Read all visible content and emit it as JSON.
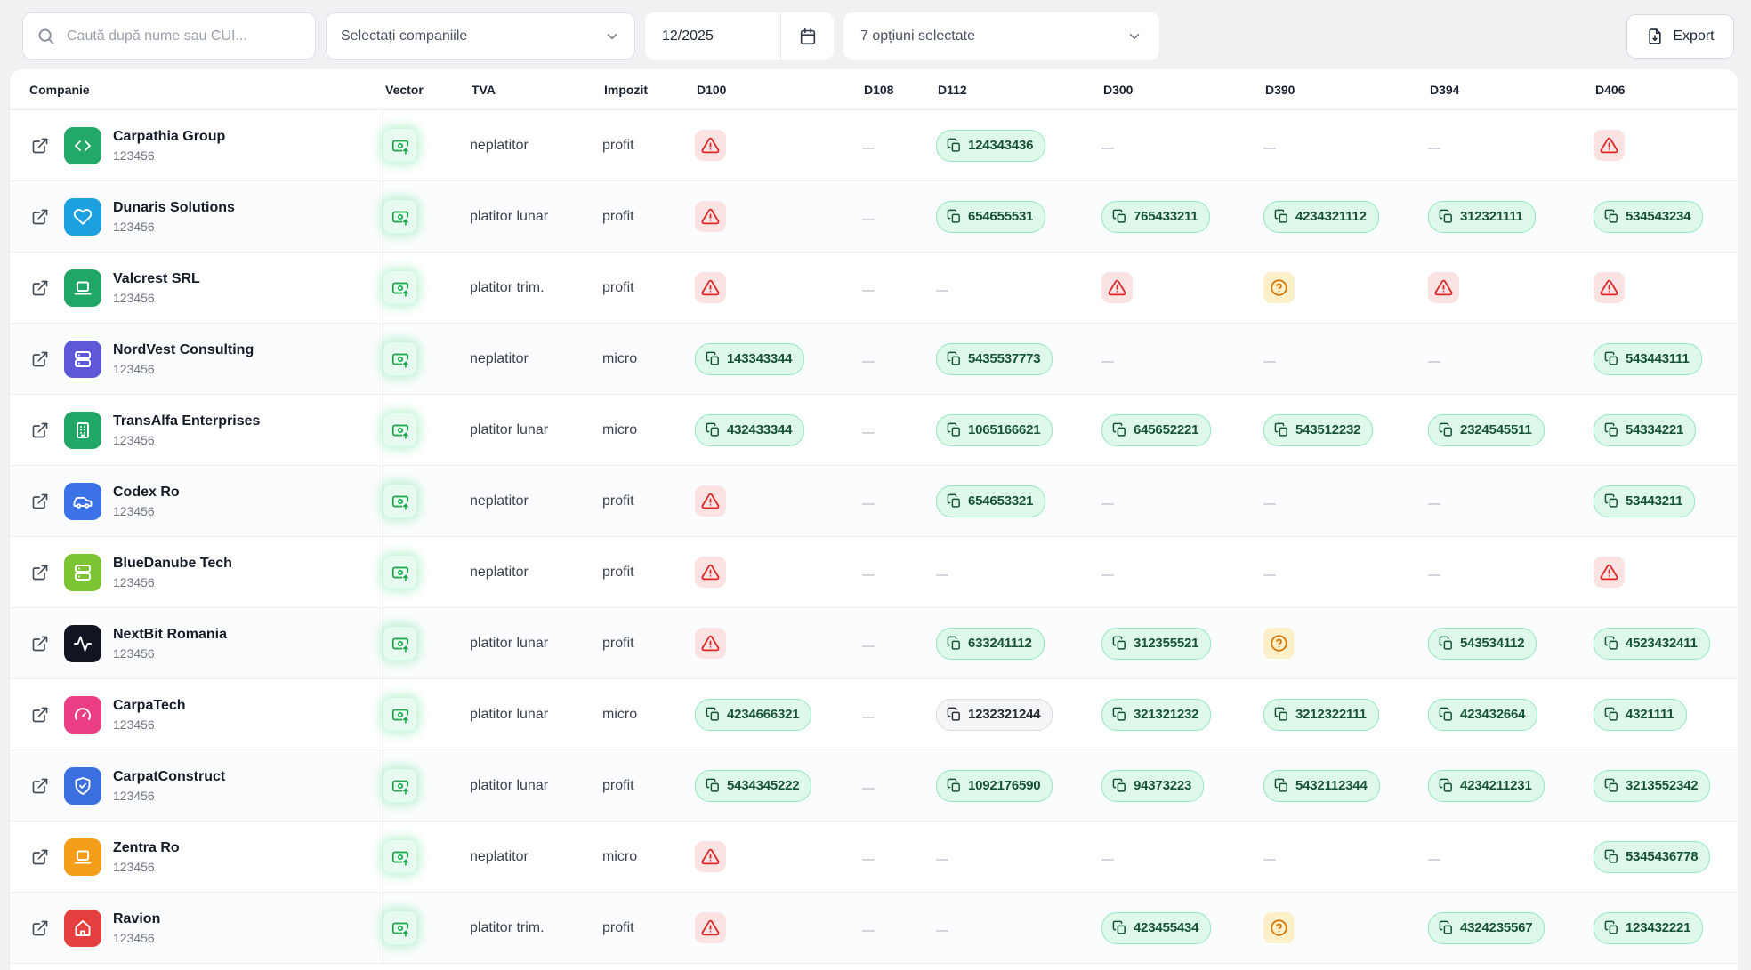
{
  "toolbar": {
    "search": {
      "placeholder": "Caută după nume sau CUI..."
    },
    "company_select": {
      "value": "Selectați companiile"
    },
    "period": {
      "value": "12/2025"
    },
    "options_select": {
      "value": "7 opțiuni selectate"
    },
    "export": {
      "label": "Export"
    }
  },
  "colors": {
    "badge_green_bg": "#DEF9EA",
    "badge_green_border": "#93E7C0",
    "badge_green_text": "#175235",
    "badge_neutral_bg": "#F4F5F7",
    "badge_neutral_border": "#D8DCE1",
    "badge_neutral_text": "#232A31",
    "alert_bg": "#FBE3E4",
    "alert_icon": "#DC2626",
    "question_bg": "#FBF0C9",
    "question_icon": "#D97706",
    "vector_icon": "#16A34A"
  },
  "table": {
    "columns": [
      {
        "key": "companie",
        "label": "Companie"
      },
      {
        "key": "vector",
        "label": "Vector"
      },
      {
        "key": "tva",
        "label": "TVA"
      },
      {
        "key": "impozit",
        "label": "Impozit"
      },
      {
        "key": "d100",
        "label": "D100"
      },
      {
        "key": "d108",
        "label": "D108"
      },
      {
        "key": "d112",
        "label": "D112"
      },
      {
        "key": "d300",
        "label": "D300"
      },
      {
        "key": "d390",
        "label": "D390"
      },
      {
        "key": "d394",
        "label": "D394"
      },
      {
        "key": "d406",
        "label": "D406"
      }
    ],
    "rows": [
      {
        "name": "Carpathia Group",
        "cui": "123456",
        "icon": "code-icon",
        "icon_bg": "#22A868",
        "tva": "neplatitor",
        "impozit": "profit",
        "declarations": [
          {
            "type": "alert"
          },
          {
            "type": "empty"
          },
          {
            "type": "value",
            "value": "124343436",
            "variant": "green"
          },
          {
            "type": "empty"
          },
          {
            "type": "empty"
          },
          {
            "type": "empty"
          },
          {
            "type": "alert"
          }
        ]
      },
      {
        "name": "Dunaris Solutions",
        "cui": "123456",
        "icon": "heart-icon",
        "icon_bg": "#1CA0E0",
        "tva": "platitor lunar",
        "impozit": "profit",
        "declarations": [
          {
            "type": "alert"
          },
          {
            "type": "empty"
          },
          {
            "type": "value",
            "value": "654655531",
            "variant": "green"
          },
          {
            "type": "value",
            "value": "765433211",
            "variant": "green"
          },
          {
            "type": "value",
            "value": "4234321112",
            "variant": "green"
          },
          {
            "type": "value",
            "value": "312321111",
            "variant": "green"
          },
          {
            "type": "value",
            "value": "534543234",
            "variant": "green"
          }
        ]
      },
      {
        "name": "Valcrest SRL",
        "cui": "123456",
        "icon": "laptop-icon",
        "icon_bg": "#21A765",
        "tva": "platitor trim.",
        "impozit": "profit",
        "declarations": [
          {
            "type": "alert"
          },
          {
            "type": "empty"
          },
          {
            "type": "empty"
          },
          {
            "type": "alert"
          },
          {
            "type": "question"
          },
          {
            "type": "alert"
          },
          {
            "type": "alert"
          }
        ]
      },
      {
        "name": "NordVest Consulting",
        "cui": "123456",
        "icon": "server-icon",
        "icon_bg": "#5E58D8",
        "tva": "neplatitor",
        "impozit": "micro",
        "declarations": [
          {
            "type": "value",
            "value": "143343344",
            "variant": "green"
          },
          {
            "type": "empty"
          },
          {
            "type": "value",
            "value": "5435537773",
            "variant": "green"
          },
          {
            "type": "empty"
          },
          {
            "type": "empty"
          },
          {
            "type": "empty"
          },
          {
            "type": "value",
            "value": "543443111",
            "variant": "green"
          }
        ]
      },
      {
        "name": "TransAlfa Enterprises",
        "cui": "123456",
        "icon": "building-icon",
        "icon_bg": "#21A765",
        "tva": "platitor lunar",
        "impozit": "micro",
        "declarations": [
          {
            "type": "value",
            "value": "432433344",
            "variant": "green"
          },
          {
            "type": "empty"
          },
          {
            "type": "value",
            "value": "1065166621",
            "variant": "green"
          },
          {
            "type": "value",
            "value": "645652221",
            "variant": "green"
          },
          {
            "type": "value",
            "value": "543512232",
            "variant": "green"
          },
          {
            "type": "value",
            "value": "2324545511",
            "variant": "green"
          },
          {
            "type": "value",
            "value": "54334221",
            "variant": "green"
          }
        ]
      },
      {
        "name": "Codex Ro",
        "cui": "123456",
        "icon": "car-icon",
        "icon_bg": "#3B72E8",
        "tva": "neplatitor",
        "impozit": "profit",
        "declarations": [
          {
            "type": "alert"
          },
          {
            "type": "empty"
          },
          {
            "type": "value",
            "value": "654653321",
            "variant": "green"
          },
          {
            "type": "empty"
          },
          {
            "type": "empty"
          },
          {
            "type": "empty"
          },
          {
            "type": "value",
            "value": "53443211",
            "variant": "green"
          }
        ]
      },
      {
        "name": "BlueDanube Tech",
        "cui": "123456",
        "icon": "server-icon",
        "icon_bg": "#7CC433",
        "tva": "neplatitor",
        "impozit": "profit",
        "declarations": [
          {
            "type": "alert"
          },
          {
            "type": "empty"
          },
          {
            "type": "empty"
          },
          {
            "type": "empty"
          },
          {
            "type": "empty"
          },
          {
            "type": "empty"
          },
          {
            "type": "alert"
          }
        ]
      },
      {
        "name": "NextBit Romania",
        "cui": "123456",
        "icon": "activity-icon",
        "icon_bg": "#111522",
        "tva": "platitor lunar",
        "impozit": "profit",
        "declarations": [
          {
            "type": "alert"
          },
          {
            "type": "empty"
          },
          {
            "type": "value",
            "value": "633241112",
            "variant": "green"
          },
          {
            "type": "value",
            "value": "312355521",
            "variant": "green"
          },
          {
            "type": "question"
          },
          {
            "type": "value",
            "value": "543534112",
            "variant": "green"
          },
          {
            "type": "value",
            "value": "4523432411",
            "variant": "green"
          }
        ]
      },
      {
        "name": "CarpaTech",
        "cui": "123456",
        "icon": "gauge-icon",
        "icon_bg": "#EC3E85",
        "tva": "platitor lunar",
        "impozit": "micro",
        "declarations": [
          {
            "type": "value",
            "value": "4234666321",
            "variant": "green"
          },
          {
            "type": "empty"
          },
          {
            "type": "value",
            "value": "1232321244",
            "variant": "neutral"
          },
          {
            "type": "value",
            "value": "321321232",
            "variant": "green"
          },
          {
            "type": "value",
            "value": "3212322111",
            "variant": "green"
          },
          {
            "type": "value",
            "value": "423432664",
            "variant": "green"
          },
          {
            "type": "value",
            "value": "4321111",
            "variant": "green"
          }
        ]
      },
      {
        "name": "CarpatConstruct",
        "cui": "123456",
        "icon": "shield-check-icon",
        "icon_bg": "#3B6FE0",
        "tva": "platitor lunar",
        "impozit": "profit",
        "declarations": [
          {
            "type": "value",
            "value": "5434345222",
            "variant": "green"
          },
          {
            "type": "empty"
          },
          {
            "type": "value",
            "value": "1092176590",
            "variant": "green"
          },
          {
            "type": "value",
            "value": "94373223",
            "variant": "green"
          },
          {
            "type": "value",
            "value": "5432112344",
            "variant": "green"
          },
          {
            "type": "value",
            "value": "4234211231",
            "variant": "green"
          },
          {
            "type": "value",
            "value": "3213552342",
            "variant": "green"
          }
        ]
      },
      {
        "name": "Zentra Ro",
        "cui": "123456",
        "icon": "laptop-icon",
        "icon_bg": "#F59E1B",
        "tva": "neplatitor",
        "impozit": "micro",
        "declarations": [
          {
            "type": "alert"
          },
          {
            "type": "empty"
          },
          {
            "type": "empty"
          },
          {
            "type": "empty"
          },
          {
            "type": "empty"
          },
          {
            "type": "empty"
          },
          {
            "type": "value",
            "value": "5345436778",
            "variant": "green"
          }
        ]
      },
      {
        "name": "Ravion",
        "cui": "123456",
        "icon": "home-icon",
        "icon_bg": "#E5403F",
        "tva": "platitor trim.",
        "impozit": "profit",
        "declarations": [
          {
            "type": "alert"
          },
          {
            "type": "empty"
          },
          {
            "type": "empty"
          },
          {
            "type": "value",
            "value": "423455434",
            "variant": "green"
          },
          {
            "type": "question"
          },
          {
            "type": "value",
            "value": "4324235567",
            "variant": "green"
          },
          {
            "type": "value",
            "value": "123432221",
            "variant": "green"
          }
        ]
      }
    ]
  }
}
